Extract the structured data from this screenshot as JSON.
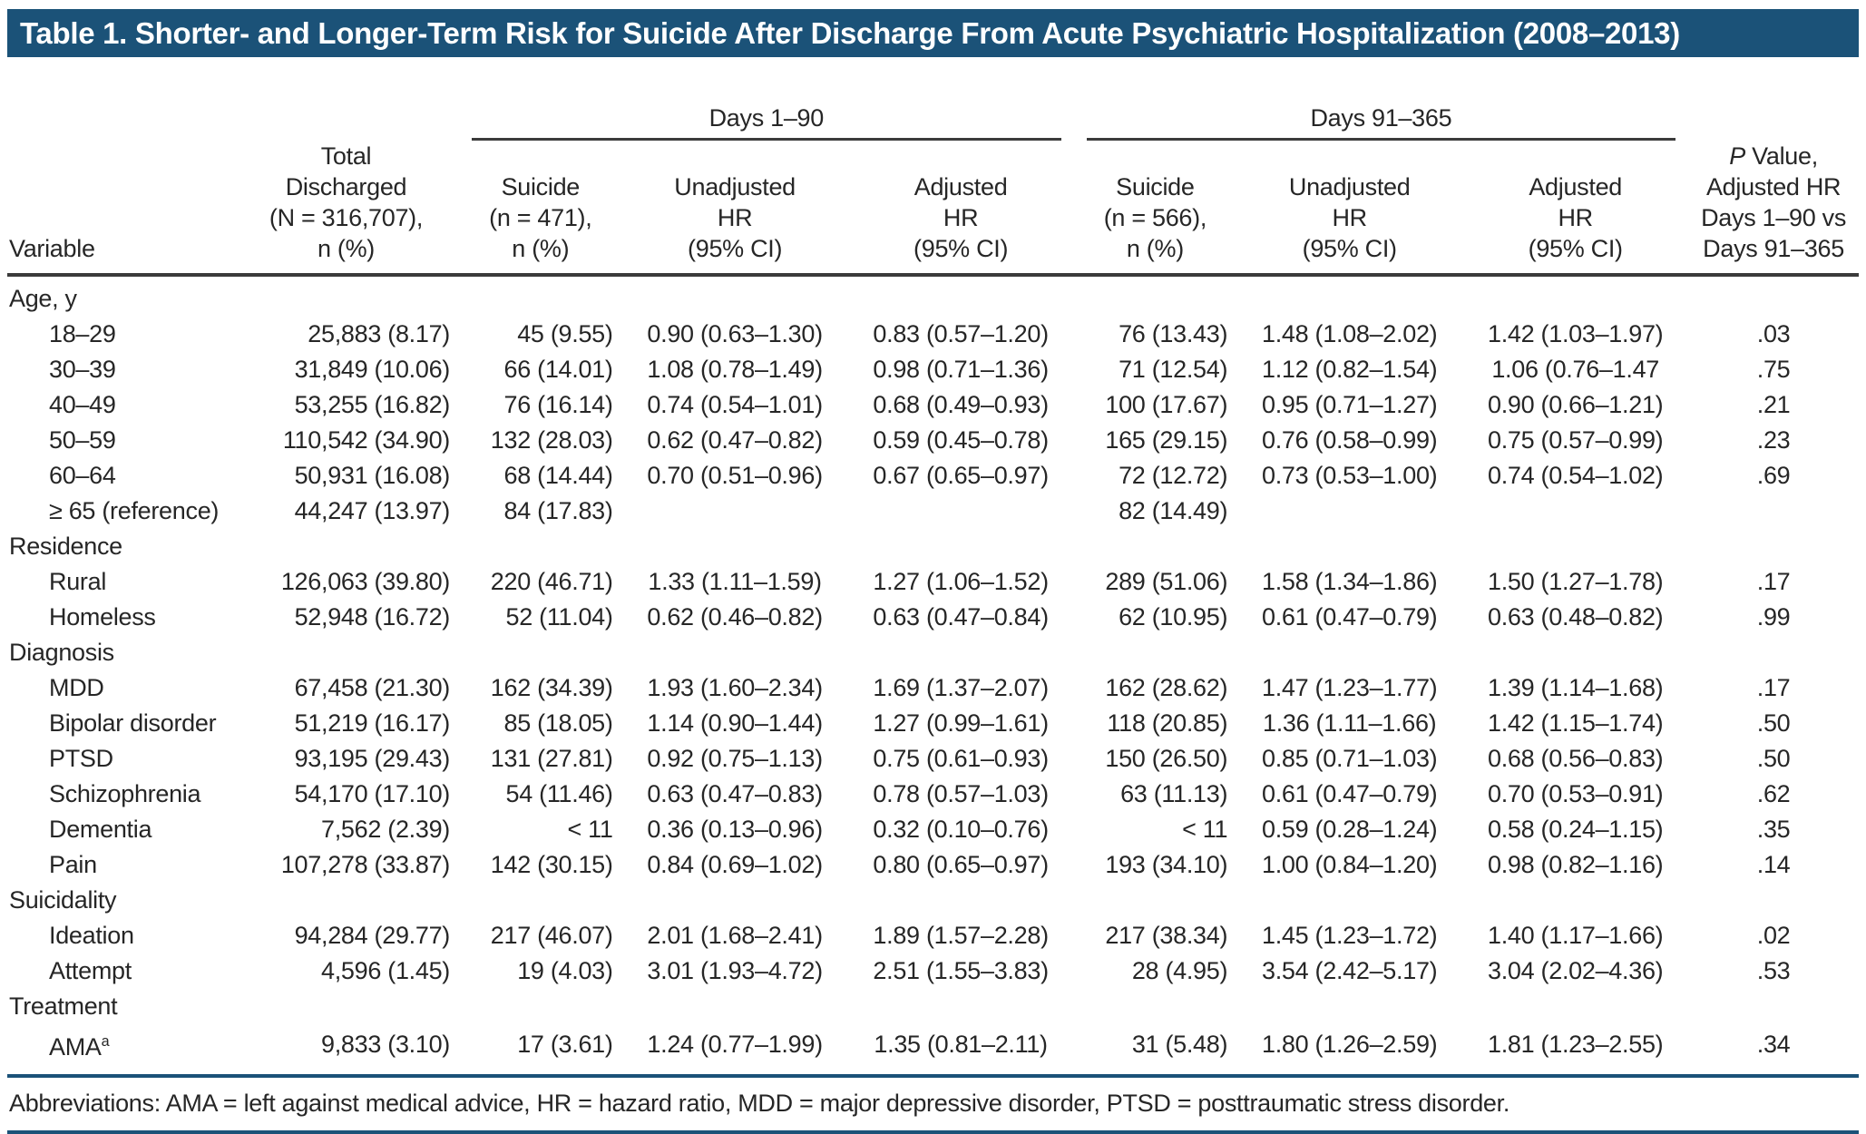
{
  "title": "Table 1. Shorter- and Longer-Term Risk for Suicide After Discharge From Acute Psychiatric Hospitalization (2008–2013)",
  "header": {
    "variable": "Variable",
    "total": "Total\nDischarged\n(N = 316,707),\nn (%)",
    "group1": "Days 1–90",
    "group2": "Days 91–365",
    "sub": {
      "suicide1": "Suicide\n(n = 471),\nn (%)",
      "unadj1": "Unadjusted\nHR\n(95% CI)",
      "adj1": "Adjusted\nHR\n(95% CI)",
      "suicide2": "Suicide\n(n = 566),\nn (%)",
      "unadj2": "Unadjusted\nHR\n(95% CI)",
      "adj2": "Adjusted\nHR\n(95% CI)"
    },
    "pvalue_italic": "P",
    "pvalue_rest": " Value,\nAdjusted HR\nDays 1–90 vs\nDays 91–365"
  },
  "rows": [
    {
      "type": "section",
      "label": "Age, y"
    },
    {
      "type": "data",
      "label": "18–29",
      "cells": [
        "25,883 (8.17)",
        "45 (9.55)",
        "0.90 (0.63–1.30)",
        "0.83 (0.57–1.20)",
        "76 (13.43)",
        "1.48 (1.08–2.02)",
        "1.42 (1.03–1.97)",
        ".03"
      ]
    },
    {
      "type": "data",
      "label": "30–39",
      "cells": [
        "31,849 (10.06)",
        "66 (14.01)",
        "1.08 (0.78–1.49)",
        "0.98 (0.71–1.36)",
        "71 (12.54)",
        "1.12 (0.82–1.54)",
        "1.06 (0.76–1.47",
        ".75"
      ]
    },
    {
      "type": "data",
      "label": "40–49",
      "cells": [
        "53,255 (16.82)",
        "76 (16.14)",
        "0.74 (0.54–1.01)",
        "0.68 (0.49–0.93)",
        "100 (17.67)",
        "0.95 (0.71–1.27)",
        "0.90 (0.66–1.21)",
        ".21"
      ]
    },
    {
      "type": "data",
      "label": "50–59",
      "cells": [
        "110,542 (34.90)",
        "132 (28.03)",
        "0.62 (0.47–0.82)",
        "0.59 (0.45–0.78)",
        "165 (29.15)",
        "0.76 (0.58–0.99)",
        "0.75 (0.57–0.99)",
        ".23"
      ]
    },
    {
      "type": "data",
      "label": "60–64",
      "cells": [
        "50,931 (16.08)",
        "68 (14.44)",
        "0.70 (0.51–0.96)",
        "0.67 (0.65–0.97)",
        "72 (12.72)",
        "0.73 (0.53–1.00)",
        "0.74 (0.54–1.02)",
        ".69"
      ]
    },
    {
      "type": "data",
      "label": "≥ 65 (reference)",
      "cells": [
        "44,247 (13.97)",
        "84 (17.83)",
        "",
        "",
        "82 (14.49)",
        "",
        "",
        ""
      ]
    },
    {
      "type": "section",
      "label": "Residence"
    },
    {
      "type": "data",
      "label": "Rural",
      "cells": [
        "126,063 (39.80)",
        "220 (46.71)",
        "1.33 (1.11–1.59)",
        "1.27 (1.06–1.52)",
        "289 (51.06)",
        "1.58 (1.34–1.86)",
        "1.50 (1.27–1.78)",
        ".17"
      ]
    },
    {
      "type": "data",
      "label": "Homeless",
      "cells": [
        "52,948 (16.72)",
        "52 (11.04)",
        "0.62 (0.46–0.82)",
        "0.63 (0.47–0.84)",
        "62 (10.95)",
        "0.61 (0.47–0.79)",
        "0.63 (0.48–0.82)",
        ".99"
      ]
    },
    {
      "type": "section",
      "label": "Diagnosis"
    },
    {
      "type": "data",
      "label": "MDD",
      "cells": [
        "67,458 (21.30)",
        "162 (34.39)",
        "1.93 (1.60–2.34)",
        "1.69 (1.37–2.07)",
        "162 (28.62)",
        "1.47 (1.23–1.77)",
        "1.39 (1.14–1.68)",
        ".17"
      ]
    },
    {
      "type": "data",
      "label": "Bipolar disorder",
      "cells": [
        "51,219 (16.17)",
        "85 (18.05)",
        "1.14 (0.90–1.44)",
        "1.27 (0.99–1.61)",
        "118 (20.85)",
        "1.36 (1.11–1.66)",
        "1.42 (1.15–1.74)",
        ".50"
      ]
    },
    {
      "type": "data",
      "label": "PTSD",
      "cells": [
        "93,195 (29.43)",
        "131 (27.81)",
        "0.92 (0.75–1.13)",
        "0.75 (0.61–0.93)",
        "150 (26.50)",
        "0.85 (0.71–1.03)",
        "0.68 (0.56–0.83)",
        ".50"
      ]
    },
    {
      "type": "data",
      "label": "Schizophrenia",
      "cells": [
        "54,170 (17.10)",
        "54 (11.46)",
        "0.63 (0.47–0.83)",
        "0.78 (0.57–1.03)",
        "63 (11.13)",
        "0.61 (0.47–0.79)",
        "0.70 (0.53–0.91)",
        ".62"
      ]
    },
    {
      "type": "data",
      "label": "Dementia",
      "cells": [
        "7,562 (2.39)",
        "< 11",
        "0.36 (0.13–0.96)",
        "0.32 (0.10–0.76)",
        "< 11",
        "0.59 (0.28–1.24)",
        "0.58 (0.24–1.15)",
        ".35"
      ]
    },
    {
      "type": "data",
      "label": "Pain",
      "cells": [
        "107,278 (33.87)",
        "142 (30.15)",
        "0.84 (0.69–1.02)",
        "0.80 (0.65–0.97)",
        "193 (34.10)",
        "1.00 (0.84–1.20)",
        "0.98 (0.82–1.16)",
        ".14"
      ]
    },
    {
      "type": "section",
      "label": "Suicidality"
    },
    {
      "type": "data",
      "label": "Ideation",
      "cells": [
        "94,284 (29.77)",
        "217 (46.07)",
        "2.01 (1.68–2.41)",
        "1.89 (1.57–2.28)",
        "217 (38.34)",
        "1.45 (1.23–1.72)",
        "1.40 (1.17–1.66)",
        ".02"
      ]
    },
    {
      "type": "data",
      "label": "Attempt",
      "cells": [
        "4,596 (1.45)",
        "19 (4.03)",
        "3.01 (1.93–4.72)",
        "2.51 (1.55–3.83)",
        "28 (4.95)",
        "3.54 (2.42–5.17)",
        "3.04 (2.02–4.36)",
        ".53"
      ]
    },
    {
      "type": "section",
      "label": "Treatment"
    },
    {
      "type": "data",
      "label": "AMA",
      "label_sup": "a",
      "cells": [
        "9,833 (3.10)",
        "17 (3.61)",
        "1.24 (0.77–1.99)",
        "1.35 (0.81–2.11)",
        "31 (5.48)",
        "1.80 (1.26–2.59)",
        "1.81 (1.23–2.55)",
        ".34"
      ]
    }
  ],
  "footnote": "Abbreviations: AMA = left against medical advice, HR = hazard ratio, MDD = major depressive disorder, PTSD = posttraumatic stress disorder.",
  "colors": {
    "accent": "#1B5278",
    "text": "#262626",
    "rule": "#3B3B3B"
  }
}
